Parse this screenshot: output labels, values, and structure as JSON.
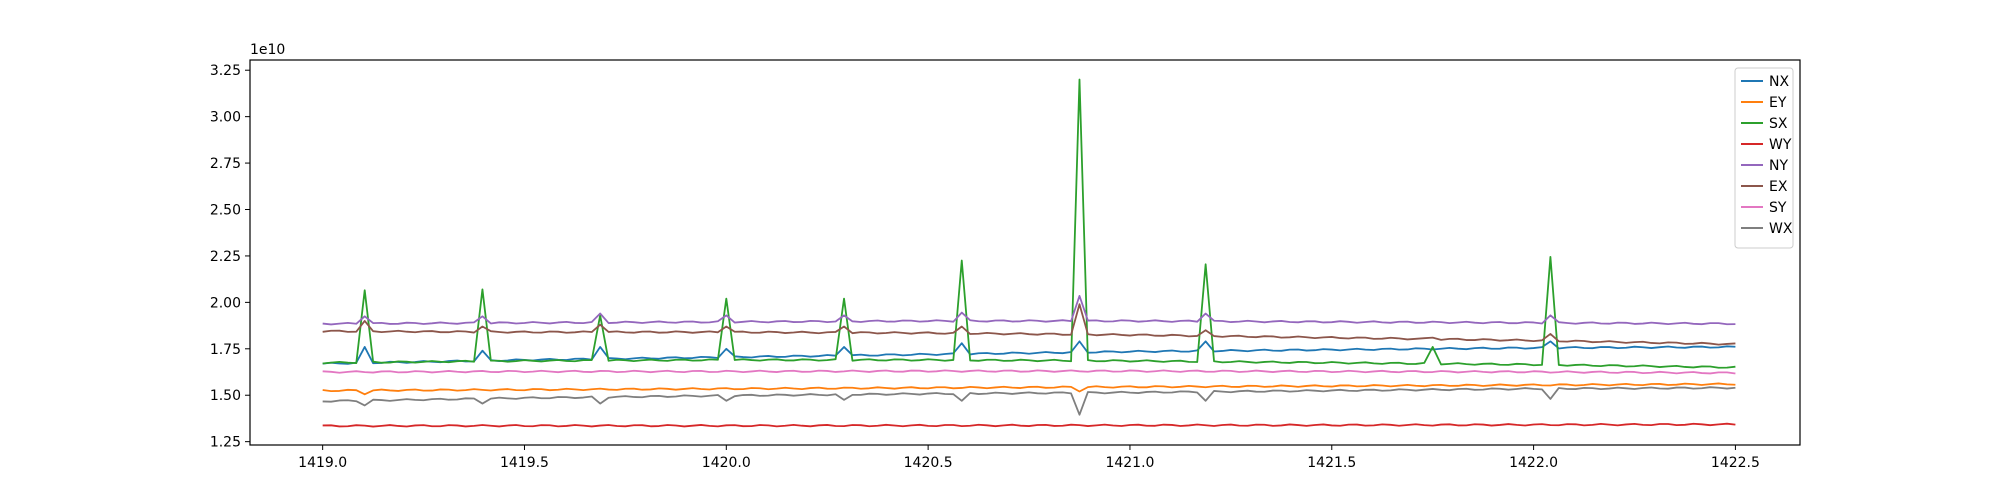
{
  "chart_data": {
    "type": "line",
    "title": "",
    "xlabel": "",
    "ylabel": "",
    "y_offset_text": "1e10",
    "xlim": [
      1418.82,
      1422.66
    ],
    "ylim": [
      1.232,
      3.305
    ],
    "x_ticks": [
      1419.0,
      1419.5,
      1420.0,
      1420.5,
      1421.0,
      1421.5,
      1422.0,
      1422.5
    ],
    "x_tick_labels": [
      "1419.0",
      "1419.5",
      "1420.0",
      "1420.5",
      "1421.0",
      "1421.5",
      "1422.0",
      "1422.5"
    ],
    "y_ticks": [
      1.25,
      1.5,
      1.75,
      2.0,
      2.25,
      2.5,
      2.75,
      3.0,
      3.25
    ],
    "y_tick_labels": [
      "1.25",
      "1.50",
      "1.75",
      "2.00",
      "2.25",
      "2.50",
      "2.75",
      "3.00",
      "3.25"
    ],
    "grid": false,
    "legend_position": "top-right",
    "x": {
      "start": 1419.0,
      "end": 1422.5,
      "step": 0.0208333
    },
    "events_x": [
      1419.104,
      1419.4,
      1419.69,
      1420.0,
      1420.29,
      1420.59,
      1420.875,
      1421.18,
      1421.75,
      1422.05
    ],
    "series": [
      {
        "name": "NX",
        "color": "#1f77b4",
        "points": [
          [
            1419.0,
            1.67
          ],
          [
            1419.5,
            1.69
          ],
          [
            1420.0,
            1.705
          ],
          [
            1420.5,
            1.72
          ],
          [
            1421.0,
            1.735
          ],
          [
            1421.5,
            1.745
          ],
          [
            1422.0,
            1.755
          ],
          [
            1422.5,
            1.76
          ]
        ],
        "spikes": [
          [
            1419.104,
            1.76
          ],
          [
            1419.4,
            1.74
          ],
          [
            1419.69,
            1.76
          ],
          [
            1420.0,
            1.75
          ],
          [
            1420.29,
            1.76
          ],
          [
            1420.59,
            1.78
          ],
          [
            1420.875,
            1.79
          ],
          [
            1421.18,
            1.79
          ],
          [
            1422.05,
            1.79
          ]
        ]
      },
      {
        "name": "EY",
        "color": "#ff7f0e",
        "points": [
          [
            1419.0,
            1.525
          ],
          [
            1419.5,
            1.53
          ],
          [
            1420.0,
            1.535
          ],
          [
            1420.5,
            1.54
          ],
          [
            1421.0,
            1.545
          ],
          [
            1421.5,
            1.55
          ],
          [
            1422.0,
            1.555
          ],
          [
            1422.5,
            1.56
          ]
        ],
        "spikes": [
          [
            1419.104,
            1.505
          ],
          [
            1420.875,
            1.52
          ]
        ]
      },
      {
        "name": "SX",
        "color": "#2ca02c",
        "points": [
          [
            1419.0,
            1.675
          ],
          [
            1419.5,
            1.685
          ],
          [
            1420.0,
            1.69
          ],
          [
            1420.5,
            1.69
          ],
          [
            1421.0,
            1.685
          ],
          [
            1421.5,
            1.675
          ],
          [
            1422.0,
            1.665
          ],
          [
            1422.5,
            1.65
          ]
        ],
        "spikes": [
          [
            1419.104,
            2.065
          ],
          [
            1419.4,
            2.07
          ],
          [
            1419.69,
            1.93
          ],
          [
            1420.0,
            2.02
          ],
          [
            1420.29,
            2.02
          ],
          [
            1420.59,
            2.225
          ],
          [
            1420.875,
            3.2
          ],
          [
            1421.18,
            2.205
          ],
          [
            1421.75,
            1.76
          ],
          [
            1422.05,
            2.245
          ]
        ]
      },
      {
        "name": "WY",
        "color": "#d62728",
        "points": [
          [
            1419.0,
            1.335
          ],
          [
            1419.5,
            1.336
          ],
          [
            1420.0,
            1.336
          ],
          [
            1420.5,
            1.337
          ],
          [
            1421.0,
            1.338
          ],
          [
            1421.5,
            1.339
          ],
          [
            1422.0,
            1.341
          ],
          [
            1422.5,
            1.343
          ]
        ],
        "spikes": []
      },
      {
        "name": "NY",
        "color": "#9467bd",
        "points": [
          [
            1419.0,
            1.885
          ],
          [
            1419.5,
            1.89
          ],
          [
            1420.0,
            1.895
          ],
          [
            1420.5,
            1.9
          ],
          [
            1421.0,
            1.9
          ],
          [
            1421.5,
            1.895
          ],
          [
            1422.0,
            1.89
          ],
          [
            1422.5,
            1.885
          ]
        ],
        "spikes": [
          [
            1419.104,
            1.925
          ],
          [
            1419.4,
            1.925
          ],
          [
            1419.69,
            1.94
          ],
          [
            1420.0,
            1.93
          ],
          [
            1420.29,
            1.93
          ],
          [
            1420.59,
            1.945
          ],
          [
            1420.875,
            2.035
          ],
          [
            1421.18,
            1.94
          ],
          [
            1422.05,
            1.93
          ]
        ]
      },
      {
        "name": "EX",
        "color": "#8c564b",
        "points": [
          [
            1419.0,
            1.845
          ],
          [
            1419.5,
            1.84
          ],
          [
            1420.0,
            1.84
          ],
          [
            1420.5,
            1.835
          ],
          [
            1421.0,
            1.825
          ],
          [
            1421.5,
            1.81
          ],
          [
            1422.0,
            1.795
          ],
          [
            1422.5,
            1.775
          ]
        ],
        "spikes": [
          [
            1419.104,
            1.9
          ],
          [
            1419.4,
            1.87
          ],
          [
            1419.69,
            1.88
          ],
          [
            1420.0,
            1.87
          ],
          [
            1420.29,
            1.87
          ],
          [
            1420.59,
            1.87
          ],
          [
            1420.875,
            1.99
          ],
          [
            1421.18,
            1.85
          ],
          [
            1421.75,
            1.81
          ],
          [
            1422.05,
            1.83
          ]
        ]
      },
      {
        "name": "SY",
        "color": "#e377c2",
        "points": [
          [
            1419.0,
            1.625
          ],
          [
            1419.5,
            1.628
          ],
          [
            1420.0,
            1.628
          ],
          [
            1420.5,
            1.63
          ],
          [
            1421.0,
            1.63
          ],
          [
            1421.5,
            1.628
          ],
          [
            1422.0,
            1.626
          ],
          [
            1422.5,
            1.62
          ]
        ],
        "spikes": []
      },
      {
        "name": "WX",
        "color": "#7f7f7f",
        "points": [
          [
            1419.0,
            1.468
          ],
          [
            1419.5,
            1.485
          ],
          [
            1420.0,
            1.498
          ],
          [
            1420.5,
            1.508
          ],
          [
            1421.0,
            1.515
          ],
          [
            1421.5,
            1.525
          ],
          [
            1422.0,
            1.535
          ],
          [
            1422.5,
            1.54
          ]
        ],
        "spikes": [
          [
            1419.104,
            1.445
          ],
          [
            1419.4,
            1.455
          ],
          [
            1419.69,
            1.455
          ],
          [
            1420.0,
            1.47
          ],
          [
            1420.29,
            1.475
          ],
          [
            1420.59,
            1.47
          ],
          [
            1420.875,
            1.395
          ],
          [
            1421.18,
            1.47
          ],
          [
            1422.05,
            1.48
          ]
        ]
      }
    ]
  }
}
